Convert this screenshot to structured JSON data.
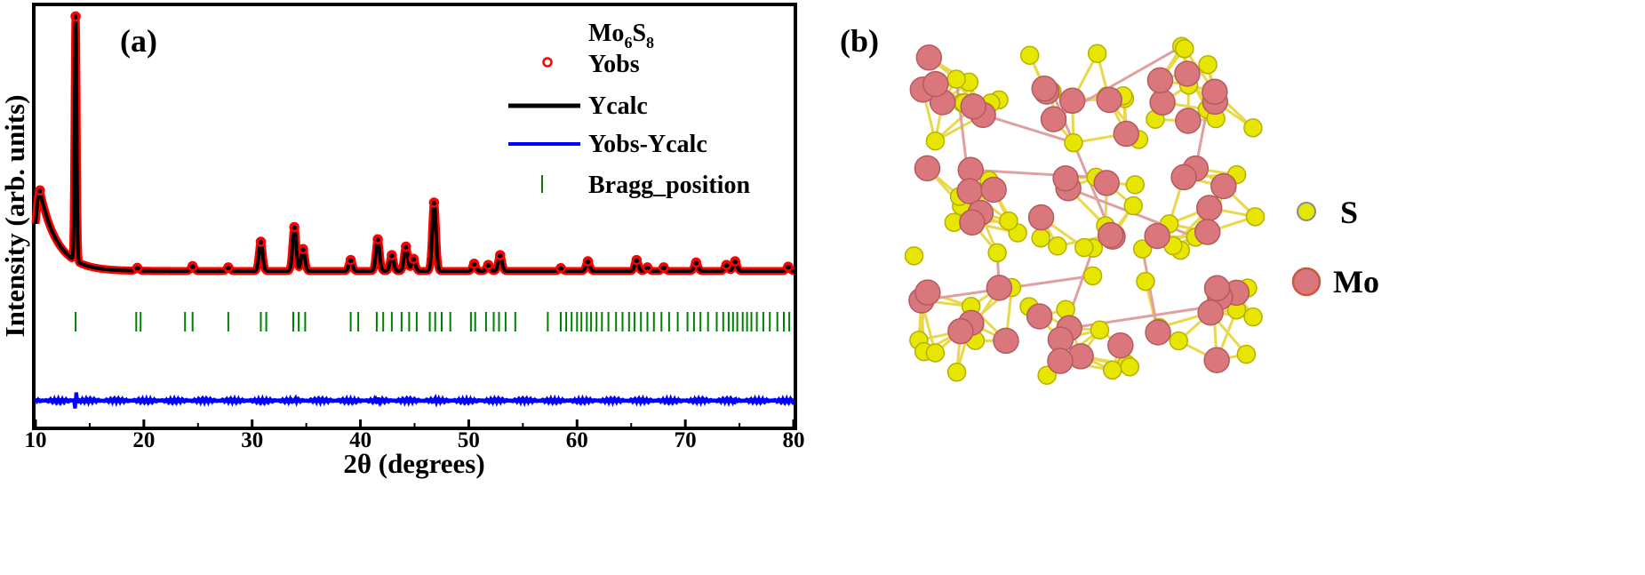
{
  "panels": {
    "a": {
      "label": "(a)"
    },
    "b": {
      "label": "(b)"
    }
  },
  "legend": {
    "compound_base": "Mo",
    "compound_sub1": "6",
    "compound_mid": "S",
    "compound_sub2": "8",
    "entries": [
      {
        "label": "Yobs",
        "marker": "open-circle",
        "color": "#ff0000"
      },
      {
        "label": "Ycalc",
        "marker": "line",
        "color": "#000000"
      },
      {
        "label": "Yobs-Ycalc",
        "marker": "line",
        "color": "#0000ff"
      },
      {
        "label": "Bragg_position",
        "marker": "tick",
        "color": "#008000"
      }
    ]
  },
  "structure_legend": [
    {
      "label": "S",
      "color": "#e6e600"
    },
    {
      "label": "Mo",
      "color": "#d9777c"
    }
  ],
  "chart_data": {
    "type": "line",
    "xlabel": "2θ (degrees)",
    "ylabel": "Intensity (arb. units)",
    "xlim": [
      10,
      80
    ],
    "xticks": [
      10,
      20,
      30,
      40,
      50,
      60,
      70,
      80
    ],
    "yticks_shown": false,
    "series": [
      {
        "name": "Yobs",
        "style": "open-circle",
        "color": "#ff0000",
        "baseline": 0.08,
        "low_angle_background": {
          "peak_2theta": 10.4,
          "intensity": 0.33,
          "decay_width": 1.6
        },
        "peaks": [
          {
            "x": 13.7,
            "y": 1.0
          },
          {
            "x": 19.4,
            "y": 0.012
          },
          {
            "x": 24.5,
            "y": 0.02
          },
          {
            "x": 27.8,
            "y": 0.015
          },
          {
            "x": 30.8,
            "y": 0.12
          },
          {
            "x": 33.9,
            "y": 0.18
          },
          {
            "x": 34.7,
            "y": 0.09
          },
          {
            "x": 39.1,
            "y": 0.045
          },
          {
            "x": 41.6,
            "y": 0.13
          },
          {
            "x": 42.9,
            "y": 0.065
          },
          {
            "x": 44.2,
            "y": 0.1
          },
          {
            "x": 44.9,
            "y": 0.05
          },
          {
            "x": 46.8,
            "y": 0.28
          },
          {
            "x": 50.5,
            "y": 0.03
          },
          {
            "x": 51.8,
            "y": 0.025
          },
          {
            "x": 52.9,
            "y": 0.065
          },
          {
            "x": 58.5,
            "y": 0.012
          },
          {
            "x": 61.0,
            "y": 0.04
          },
          {
            "x": 65.5,
            "y": 0.045
          },
          {
            "x": 66.5,
            "y": 0.015
          },
          {
            "x": 68.0,
            "y": 0.015
          },
          {
            "x": 71.0,
            "y": 0.035
          },
          {
            "x": 73.8,
            "y": 0.025
          },
          {
            "x": 74.6,
            "y": 0.04
          },
          {
            "x": 79.5,
            "y": 0.018
          }
        ]
      },
      {
        "name": "Ycalc",
        "style": "line",
        "color": "#000000",
        "same_as": "Yobs"
      },
      {
        "name": "Yobs-Ycalc",
        "style": "line",
        "color": "#0000ff",
        "level": -0.45,
        "wiggles": [
          {
            "x": 13.7,
            "amp": 0.045
          },
          {
            "x": 33.9,
            "amp": 0.012
          },
          {
            "x": 41.6,
            "amp": 0.01
          },
          {
            "x": 46.8,
            "amp": 0.012
          },
          {
            "x": 74.6,
            "amp": 0.008
          }
        ]
      },
      {
        "name": "Bragg_position",
        "style": "tick",
        "color": "#008000",
        "x": [
          13.7,
          19.3,
          19.7,
          23.8,
          24.5,
          27.8,
          30.8,
          31.3,
          33.8,
          34.3,
          34.9,
          39.1,
          39.8,
          41.5,
          42.1,
          42.9,
          43.8,
          44.5,
          45.2,
          46.4,
          46.9,
          47.5,
          48.3,
          50.2,
          50.6,
          51.6,
          52.3,
          52.8,
          53.4,
          54.3,
          57.3,
          58.5,
          59.0,
          59.5,
          60.0,
          60.4,
          60.9,
          61.3,
          61.8,
          62.3,
          62.9,
          63.6,
          64.2,
          64.8,
          65.3,
          65.9,
          66.5,
          67.1,
          67.8,
          68.5,
          69.3,
          70.2,
          70.8,
          71.4,
          72.1,
          72.9,
          73.5,
          74.0,
          74.4,
          74.8,
          75.3,
          75.7,
          76.1,
          76.6,
          77.2,
          77.8,
          78.5,
          79.1,
          79.6
        ]
      }
    ]
  }
}
